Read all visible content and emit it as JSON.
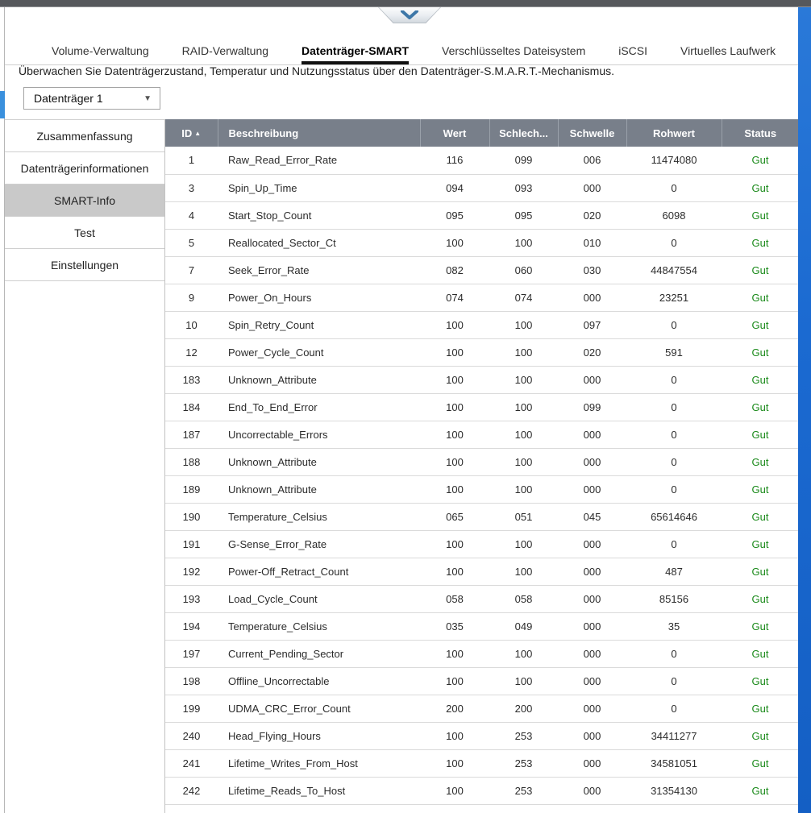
{
  "window": {
    "collapse_button_icon": "chevron-down-icon"
  },
  "tabs": [
    {
      "label": "Volume-Verwaltung",
      "active": false
    },
    {
      "label": "RAID-Verwaltung",
      "active": false
    },
    {
      "label": "Datenträger-SMART",
      "active": true
    },
    {
      "label": "Verschlüsseltes Dateisystem",
      "active": false
    },
    {
      "label": "iSCSI",
      "active": false
    },
    {
      "label": "Virtuelles Laufwerk",
      "active": false
    }
  ],
  "description": "Überwachen Sie Datenträgerzustand, Temperatur und Nutzungsstatus über den Datenträger-S.M.A.R.T.-Mechanismus.",
  "disk_selector": {
    "value": "Datenträger 1",
    "caret_icon": "▼"
  },
  "sidebar": {
    "items": [
      {
        "label": "Zusammenfassung",
        "selected": false
      },
      {
        "label": "Datenträgerinformationen",
        "selected": false
      },
      {
        "label": "SMART-Info",
        "selected": true
      },
      {
        "label": "Test",
        "selected": false
      },
      {
        "label": "Einstellungen",
        "selected": false
      }
    ]
  },
  "table": {
    "columns": [
      "ID",
      "Beschreibung",
      "Wert",
      "Schlech...",
      "Schwelle",
      "Rohwert",
      "Status"
    ],
    "sort": {
      "column": "ID",
      "direction": "asc",
      "icon": "▲"
    },
    "rows": [
      [
        "1",
        "Raw_Read_Error_Rate",
        "116",
        "099",
        "006",
        "11474080",
        "Gut"
      ],
      [
        "3",
        "Spin_Up_Time",
        "094",
        "093",
        "000",
        "0",
        "Gut"
      ],
      [
        "4",
        "Start_Stop_Count",
        "095",
        "095",
        "020",
        "6098",
        "Gut"
      ],
      [
        "5",
        "Reallocated_Sector_Ct",
        "100",
        "100",
        "010",
        "0",
        "Gut"
      ],
      [
        "7",
        "Seek_Error_Rate",
        "082",
        "060",
        "030",
        "44847554",
        "Gut"
      ],
      [
        "9",
        "Power_On_Hours",
        "074",
        "074",
        "000",
        "23251",
        "Gut"
      ],
      [
        "10",
        "Spin_Retry_Count",
        "100",
        "100",
        "097",
        "0",
        "Gut"
      ],
      [
        "12",
        "Power_Cycle_Count",
        "100",
        "100",
        "020",
        "591",
        "Gut"
      ],
      [
        "183",
        "Unknown_Attribute",
        "100",
        "100",
        "000",
        "0",
        "Gut"
      ],
      [
        "184",
        "End_To_End_Error",
        "100",
        "100",
        "099",
        "0",
        "Gut"
      ],
      [
        "187",
        "Uncorrectable_Errors",
        "100",
        "100",
        "000",
        "0",
        "Gut"
      ],
      [
        "188",
        "Unknown_Attribute",
        "100",
        "100",
        "000",
        "0",
        "Gut"
      ],
      [
        "189",
        "Unknown_Attribute",
        "100",
        "100",
        "000",
        "0",
        "Gut"
      ],
      [
        "190",
        "Temperature_Celsius",
        "065",
        "051",
        "045",
        "65614646",
        "Gut"
      ],
      [
        "191",
        "G-Sense_Error_Rate",
        "100",
        "100",
        "000",
        "0",
        "Gut"
      ],
      [
        "192",
        "Power-Off_Retract_Count",
        "100",
        "100",
        "000",
        "487",
        "Gut"
      ],
      [
        "193",
        "Load_Cycle_Count",
        "058",
        "058",
        "000",
        "85156",
        "Gut"
      ],
      [
        "194",
        "Temperature_Celsius",
        "035",
        "049",
        "000",
        "35",
        "Gut"
      ],
      [
        "197",
        "Current_Pending_Sector",
        "100",
        "100",
        "000",
        "0",
        "Gut"
      ],
      [
        "198",
        "Offline_Uncorrectable",
        "100",
        "100",
        "000",
        "0",
        "Gut"
      ],
      [
        "199",
        "UDMA_CRC_Error_Count",
        "200",
        "200",
        "000",
        "0",
        "Gut"
      ],
      [
        "240",
        "Head_Flying_Hours",
        "100",
        "253",
        "000",
        "34411277",
        "Gut"
      ],
      [
        "241",
        "Lifetime_Writes_From_Host",
        "100",
        "253",
        "000",
        "34581051",
        "Gut"
      ],
      [
        "242",
        "Lifetime_Reads_To_Host",
        "100",
        "253",
        "000",
        "31354130",
        "Gut"
      ]
    ]
  },
  "colors": {
    "status_good": "#1a8a1a",
    "header_bg": "#787f8a",
    "accent_blue": "#1b6ad1",
    "handle_blue": "#3a90dd",
    "selected_item_bg": "#c9c9c9",
    "topbar": "#56585c"
  }
}
